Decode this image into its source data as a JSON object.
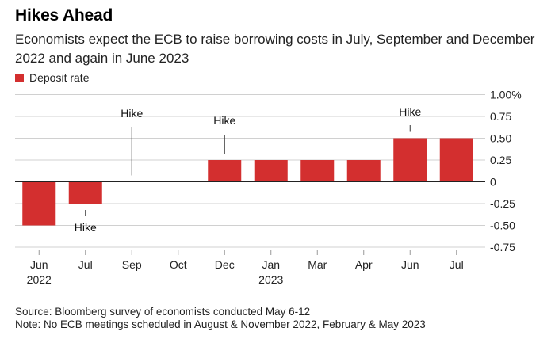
{
  "title": "Hikes Ahead",
  "subtitle": "Economists expect the ECB to raise borrowing costs in July, September and December 2022 and again in June 2023",
  "footer": {
    "source": "Source: Bloomberg survey of economists conducted May 6-12",
    "note": "Note: No ECB meetings scheduled in August & November 2022, February & May 2023"
  },
  "chart_data": {
    "type": "bar",
    "title": "Hikes Ahead",
    "categories": [
      "Jun",
      "Jul",
      "Sep",
      "Oct",
      "Dec",
      "Jan",
      "Mar",
      "Apr",
      "Jun",
      "Jul"
    ],
    "year_labels": [
      "2022",
      "",
      "",
      "",
      "",
      "2023",
      "",
      "",
      "",
      ""
    ],
    "series": [
      {
        "name": "Deposit rate",
        "color": "#d32f2f",
        "values": [
          -0.5,
          -0.25,
          0,
          0,
          0.25,
          0.25,
          0.25,
          0.25,
          0.5,
          0.5
        ]
      }
    ],
    "ylim": [
      -0.75,
      1.0
    ],
    "yticks": [
      {
        "value": 1.0,
        "label": "1.00%"
      },
      {
        "value": 0.75,
        "label": "0.75"
      },
      {
        "value": 0.5,
        "label": "0.50"
      },
      {
        "value": 0.25,
        "label": "0.25"
      },
      {
        "value": 0,
        "label": "0"
      },
      {
        "value": -0.25,
        "label": "-0.25"
      },
      {
        "value": -0.5,
        "label": "-0.50"
      },
      {
        "value": -0.75,
        "label": "-0.75"
      }
    ],
    "y_axis_position": "right",
    "grid": true,
    "legend_position": "top-left",
    "annotations": [
      {
        "category_index": 1,
        "text": "Hike",
        "direction": "below"
      },
      {
        "category_index": 2,
        "text": "Hike",
        "direction": "above"
      },
      {
        "category_index": 4,
        "text": "Hike",
        "direction": "above"
      },
      {
        "category_index": 8,
        "text": "Hike",
        "direction": "above"
      }
    ]
  }
}
